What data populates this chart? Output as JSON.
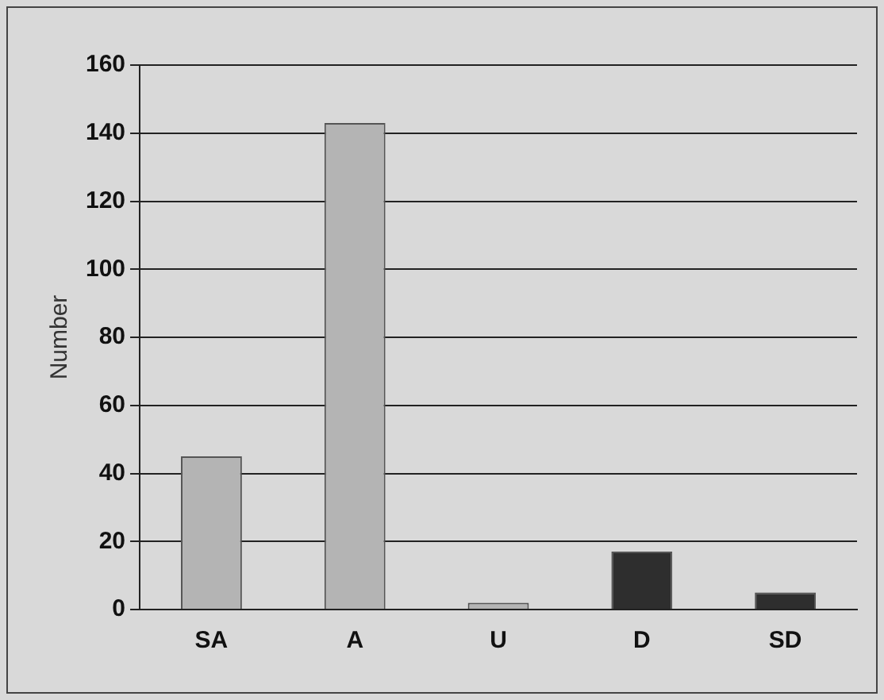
{
  "chart_data": {
    "type": "bar",
    "ylabel": "Number",
    "categories": [
      "SA",
      "A",
      "U",
      "D",
      "SD"
    ],
    "values": [
      45,
      143,
      2,
      17,
      5
    ],
    "colors": [
      "#b4b4b4",
      "#b4b4b4",
      "#b4b4b4",
      "#2e2e2e",
      "#2e2e2e"
    ],
    "ylim": [
      0,
      160
    ],
    "yticks": [
      0,
      20,
      40,
      60,
      80,
      100,
      120,
      140,
      160
    ],
    "grid": "y",
    "legend": false
  }
}
